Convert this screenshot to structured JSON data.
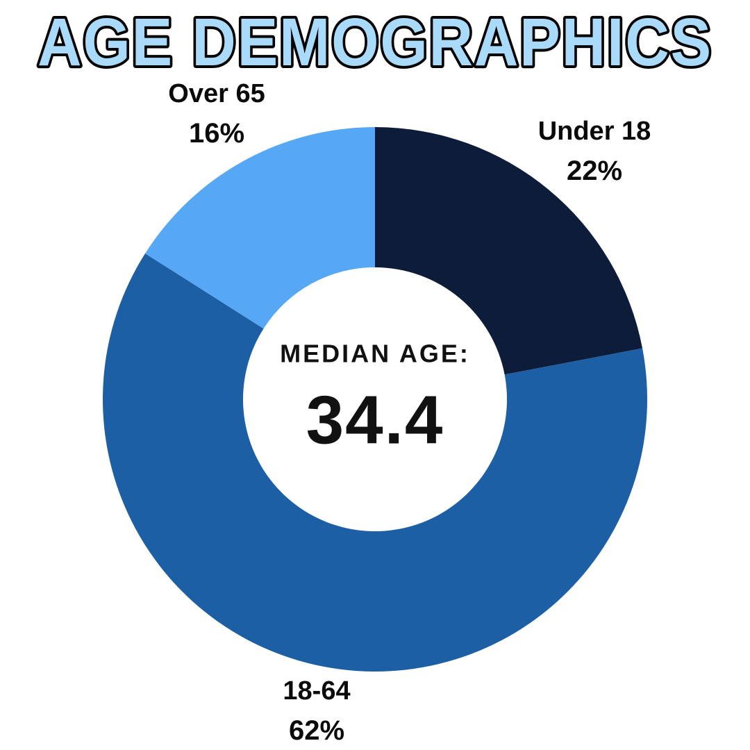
{
  "title": "AGE DEMOGRAPHICS",
  "colors": {
    "title_fill": "#a9daf9",
    "title_outline": "#000000",
    "background": "#ffffff",
    "label_text": "#0a0a0a"
  },
  "chart_data": {
    "type": "pie",
    "subtype": "donut",
    "title": "AGE DEMOGRAPHICS",
    "start_angle_deg": 0,
    "direction": "clockwise",
    "legend_position": "outside-labels",
    "segments": [
      {
        "label": "Under 18",
        "value": 22,
        "percent_label": "22%",
        "color": "#0d1c38"
      },
      {
        "label": "18-64",
        "value": 62,
        "percent_label": "62%",
        "color": "#1c5fa5"
      },
      {
        "label": "Over 65",
        "value": 16,
        "percent_label": "16%",
        "color": "#57a8f4"
      }
    ],
    "center": {
      "label": "MEDIAN AGE:",
      "value": "34.4"
    }
  }
}
